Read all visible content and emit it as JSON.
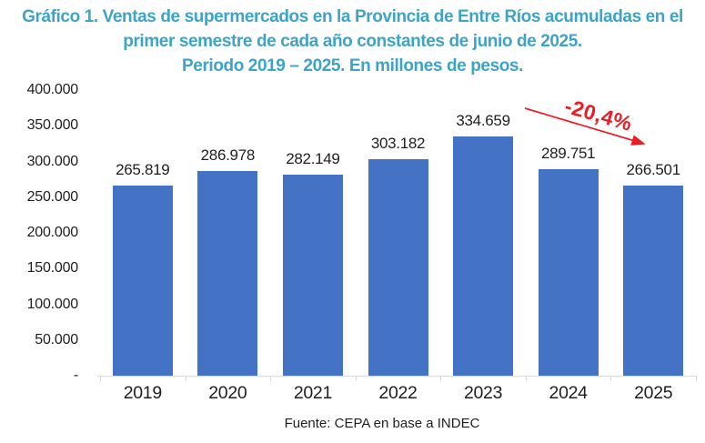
{
  "title": {
    "line1": "Gráfico 1. Ventas de supermercados en la Provincia de Entre Ríos acumuladas en el",
    "line2": "primer semestre de cada año constantes de junio de 2025.",
    "line3": "Periodo 2019 – 2025. En millones de pesos."
  },
  "chart_data": {
    "type": "bar",
    "title": "Gráfico 1. Ventas de supermercados en la Provincia de Entre Ríos acumuladas en el primer semestre de cada año constantes de junio de 2025. Periodo 2019 – 2025. En millones de pesos.",
    "categories": [
      "2019",
      "2020",
      "2021",
      "2022",
      "2023",
      "2024",
      "2025"
    ],
    "values": [
      265819,
      286978,
      282149,
      303182,
      334659,
      289751,
      266501
    ],
    "value_labels": [
      "265.819",
      "286.978",
      "282.149",
      "303.182",
      "334.659",
      "289.751",
      "266.501"
    ],
    "xlabel": "",
    "ylabel": "",
    "ylim": [
      0,
      400000
    ],
    "ytick_interval": 50000,
    "ytick_labels": [
      "400.000",
      "350.000",
      "300.000",
      "250.000",
      "200.000",
      "150.000",
      "100.000",
      "50.000",
      "-"
    ],
    "grid": false,
    "legend": false,
    "annotation": {
      "text": "-20,4%",
      "from_category": "2023",
      "to_category": "2025"
    }
  },
  "footer": {
    "source": "Fuente: CEPA en base a INDEC"
  },
  "colors": {
    "title": "#3BA4C7",
    "bar": "#4472C4",
    "annotation": "#ED1C24",
    "axis": "#D9D9D9",
    "text": "#1F1F1F"
  }
}
